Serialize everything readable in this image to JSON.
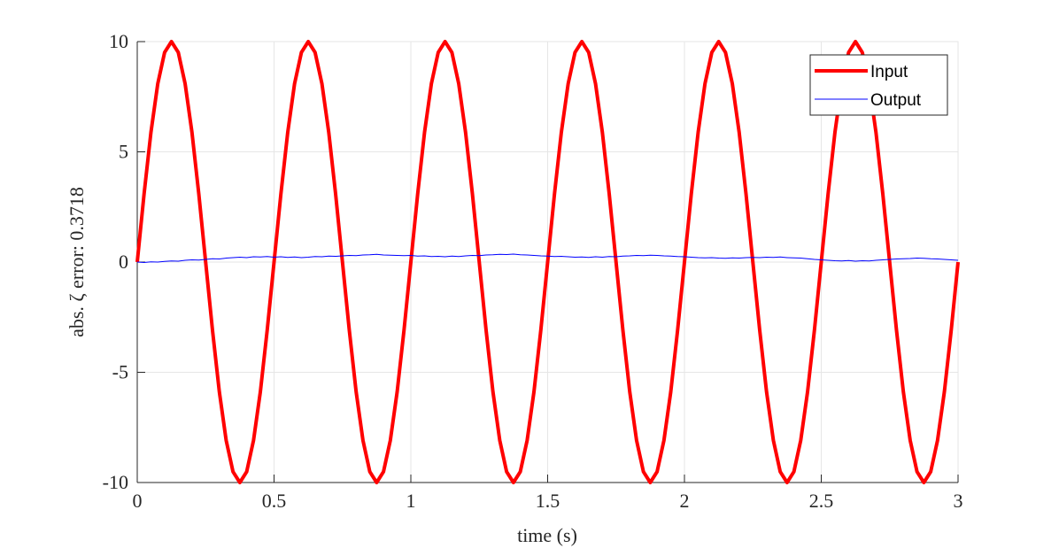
{
  "chart_data": {
    "type": "line",
    "xlabel": "time (s)",
    "ylabel": "abs. ζ error: 0.3718",
    "xlim": [
      0,
      3
    ],
    "ylim": [
      -10,
      10
    ],
    "xticks": [
      0,
      0.5,
      1,
      1.5,
      2,
      2.5,
      3
    ],
    "yticks": [
      -10,
      -5,
      0,
      5,
      10
    ],
    "grid": true,
    "legend": "upper right",
    "x": [
      0,
      0.025,
      0.05,
      0.075,
      0.1,
      0.125,
      0.15,
      0.175,
      0.2,
      0.225,
      0.25,
      0.275,
      0.3,
      0.325,
      0.35,
      0.375,
      0.4,
      0.425,
      0.45,
      0.475,
      0.5,
      0.525,
      0.55,
      0.575,
      0.6,
      0.625,
      0.65,
      0.675,
      0.7,
      0.725,
      0.75,
      0.775,
      0.8,
      0.825,
      0.85,
      0.875,
      0.9,
      0.925,
      0.95,
      0.975,
      1,
      1.025,
      1.05,
      1.075,
      1.1,
      1.125,
      1.15,
      1.175,
      1.2,
      1.225,
      1.25,
      1.275,
      1.3,
      1.325,
      1.35,
      1.375,
      1.4,
      1.425,
      1.45,
      1.475,
      1.5,
      1.525,
      1.55,
      1.575,
      1.6,
      1.625,
      1.65,
      1.675,
      1.7,
      1.725,
      1.75,
      1.775,
      1.8,
      1.825,
      1.85,
      1.875,
      1.9,
      1.925,
      1.95,
      1.975,
      2,
      2.025,
      2.05,
      2.075,
      2.1,
      2.125,
      2.15,
      2.175,
      2.2,
      2.225,
      2.25,
      2.275,
      2.3,
      2.325,
      2.35,
      2.375,
      2.4,
      2.425,
      2.45,
      2.475,
      2.5,
      2.525,
      2.55,
      2.575,
      2.6,
      2.625,
      2.65,
      2.675,
      2.7,
      2.725,
      2.75,
      2.775,
      2.8,
      2.825,
      2.85,
      2.875,
      2.9,
      2.925,
      2.95,
      2.975,
      3
    ],
    "series": [
      {
        "name": "Input",
        "color": "#ff0000",
        "width": 4,
        "values": [
          0,
          3.09,
          5.88,
          8.09,
          9.51,
          10,
          9.51,
          8.09,
          5.88,
          3.09,
          0,
          -3.09,
          -5.88,
          -8.09,
          -9.51,
          -10,
          -9.51,
          -8.09,
          -5.88,
          -3.09,
          0,
          3.09,
          5.88,
          8.09,
          9.51,
          10,
          9.51,
          8.09,
          5.88,
          3.09,
          0,
          -3.09,
          -5.88,
          -8.09,
          -9.51,
          -10,
          -9.51,
          -8.09,
          -5.88,
          -3.09,
          0,
          3.09,
          5.88,
          8.09,
          9.51,
          10,
          9.51,
          8.09,
          5.88,
          3.09,
          0,
          -3.09,
          -5.88,
          -8.09,
          -9.51,
          -10,
          -9.51,
          -8.09,
          -5.88,
          -3.09,
          0,
          3.09,
          5.88,
          8.09,
          9.51,
          10,
          9.51,
          8.09,
          5.88,
          3.09,
          0,
          -3.09,
          -5.88,
          -8.09,
          -9.51,
          -10,
          -9.51,
          -8.09,
          -5.88,
          -3.09,
          0,
          3.09,
          5.88,
          8.09,
          9.51,
          10,
          9.51,
          8.09,
          5.88,
          3.09,
          0,
          -3.09,
          -5.88,
          -8.09,
          -9.51,
          -10,
          -9.51,
          -8.09,
          -5.88,
          -3.09,
          0,
          3.09,
          5.88,
          8.09,
          9.51,
          10,
          9.51,
          8.09,
          5.88,
          3.09,
          0,
          -3.09,
          -5.88,
          -8.09,
          -9.51,
          -10,
          -9.51,
          -8.09,
          -5.88,
          -3.09,
          0
        ]
      },
      {
        "name": "Output",
        "color": "#0000ff",
        "width": 1,
        "values": [
          0,
          -0.02,
          0.01,
          0,
          0.03,
          0.05,
          0.04,
          0.08,
          0.1,
          0.09,
          0.12,
          0.15,
          0.14,
          0.18,
          0.2,
          0.22,
          0.2,
          0.24,
          0.23,
          0.25,
          0.22,
          0.24,
          0.21,
          0.23,
          0.2,
          0.22,
          0.25,
          0.24,
          0.27,
          0.26,
          0.28,
          0.3,
          0.29,
          0.32,
          0.33,
          0.35,
          0.32,
          0.31,
          0.3,
          0.29,
          0.3,
          0.27,
          0.28,
          0.25,
          0.26,
          0.24,
          0.27,
          0.25,
          0.28,
          0.3,
          0.29,
          0.32,
          0.33,
          0.35,
          0.34,
          0.36,
          0.33,
          0.32,
          0.3,
          0.28,
          0.27,
          0.25,
          0.26,
          0.24,
          0.22,
          0.23,
          0.21,
          0.24,
          0.22,
          0.25,
          0.24,
          0.27,
          0.28,
          0.3,
          0.29,
          0.31,
          0.3,
          0.28,
          0.27,
          0.25,
          0.24,
          0.22,
          0.2,
          0.19,
          0.2,
          0.18,
          0.17,
          0.19,
          0.18,
          0.2,
          0.21,
          0.2,
          0.22,
          0.21,
          0.23,
          0.2,
          0.19,
          0.18,
          0.15,
          0.12,
          0.1,
          0.08,
          0.06,
          0.05,
          0.07,
          0.04,
          0.06,
          0.05,
          0.08,
          0.1,
          0.12,
          0.14,
          0.15,
          0.16,
          0.18,
          0.17,
          0.15,
          0.14,
          0.12,
          0.1,
          0.08
        ]
      }
    ]
  }
}
